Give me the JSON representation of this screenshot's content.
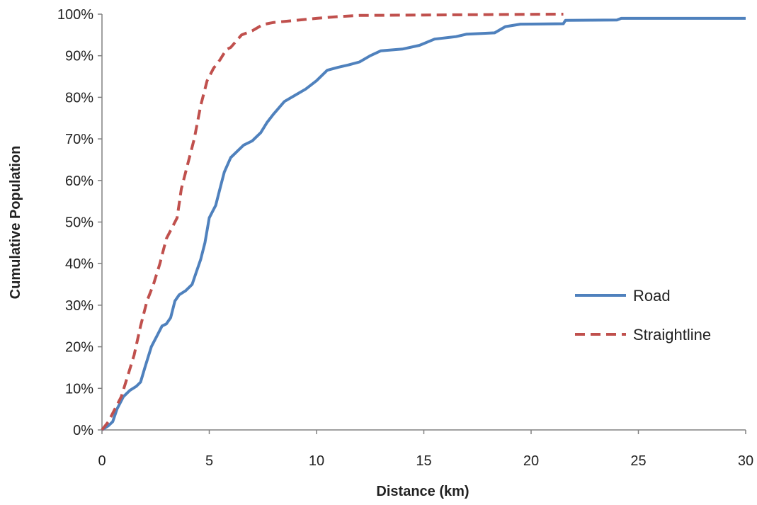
{
  "chart_data": {
    "type": "line",
    "title": "",
    "xlabel": "Distance (km)",
    "ylabel": "Cumulative Population",
    "xlim": [
      0,
      30
    ],
    "ylim": [
      0,
      100
    ],
    "x_ticks": [
      "0",
      "5",
      "10",
      "15",
      "20",
      "25",
      "30"
    ],
    "y_ticks": [
      "0%",
      "10%",
      "20%",
      "30%",
      "40%",
      "50%",
      "60%",
      "70%",
      "80%",
      "90%",
      "100%"
    ],
    "grid": false,
    "legend_position": "right",
    "series": [
      {
        "name": "Road",
        "color": "#4F81BD",
        "style": "solid",
        "points": [
          [
            0,
            0
          ],
          [
            0.3,
            1
          ],
          [
            0.5,
            2
          ],
          [
            0.7,
            5
          ],
          [
            1.0,
            8
          ],
          [
            1.3,
            9.5
          ],
          [
            1.6,
            10.5
          ],
          [
            1.8,
            11.5
          ],
          [
            2.0,
            15
          ],
          [
            2.3,
            20
          ],
          [
            2.6,
            23
          ],
          [
            2.8,
            25
          ],
          [
            3.0,
            25.5
          ],
          [
            3.2,
            27
          ],
          [
            3.4,
            31
          ],
          [
            3.6,
            32.5
          ],
          [
            3.9,
            33.5
          ],
          [
            4.2,
            35
          ],
          [
            4.4,
            38
          ],
          [
            4.6,
            41
          ],
          [
            4.8,
            45
          ],
          [
            5.0,
            51
          ],
          [
            5.3,
            54
          ],
          [
            5.5,
            58
          ],
          [
            5.7,
            62
          ],
          [
            6.0,
            65.5
          ],
          [
            6.3,
            67
          ],
          [
            6.6,
            68.5
          ],
          [
            7.0,
            69.5
          ],
          [
            7.4,
            71.5
          ],
          [
            7.7,
            74
          ],
          [
            8.0,
            76
          ],
          [
            8.5,
            79
          ],
          [
            9.0,
            80.5
          ],
          [
            9.5,
            82
          ],
          [
            10.0,
            84
          ],
          [
            10.5,
            86.5
          ],
          [
            11.0,
            87.2
          ],
          [
            11.5,
            87.8
          ],
          [
            12.0,
            88.5
          ],
          [
            12.5,
            90
          ],
          [
            13.0,
            91.2
          ],
          [
            14.0,
            91.6
          ],
          [
            14.8,
            92.5
          ],
          [
            15.5,
            94
          ],
          [
            16.5,
            94.6
          ],
          [
            17.0,
            95.2
          ],
          [
            18.3,
            95.5
          ],
          [
            18.8,
            97
          ],
          [
            19.5,
            97.6
          ],
          [
            21.5,
            97.7
          ],
          [
            21.6,
            98.5
          ],
          [
            24.0,
            98.6
          ],
          [
            24.2,
            99
          ],
          [
            30.0,
            99
          ]
        ]
      },
      {
        "name": "Straightline",
        "color": "#C0504D",
        "style": "dashed",
        "points": [
          [
            0,
            0
          ],
          [
            0.3,
            2
          ],
          [
            0.6,
            5
          ],
          [
            0.9,
            8
          ],
          [
            1.2,
            13
          ],
          [
            1.5,
            18
          ],
          [
            1.8,
            25
          ],
          [
            2.1,
            31
          ],
          [
            2.4,
            35
          ],
          [
            2.7,
            40
          ],
          [
            3.0,
            46
          ],
          [
            3.3,
            49
          ],
          [
            3.5,
            51
          ],
          [
            3.7,
            58
          ],
          [
            4.0,
            64
          ],
          [
            4.3,
            70
          ],
          [
            4.6,
            78
          ],
          [
            4.9,
            84
          ],
          [
            5.2,
            87
          ],
          [
            5.5,
            89
          ],
          [
            5.8,
            91.5
          ],
          [
            6.0,
            92
          ],
          [
            6.5,
            95
          ],
          [
            7.0,
            96
          ],
          [
            7.5,
            97.5
          ],
          [
            8.0,
            98
          ],
          [
            9.0,
            98.5
          ],
          [
            10.0,
            99
          ],
          [
            11.0,
            99.4
          ],
          [
            12.0,
            99.7
          ],
          [
            15.0,
            99.8
          ],
          [
            18.0,
            99.9
          ],
          [
            21.5,
            100
          ]
        ]
      }
    ]
  }
}
